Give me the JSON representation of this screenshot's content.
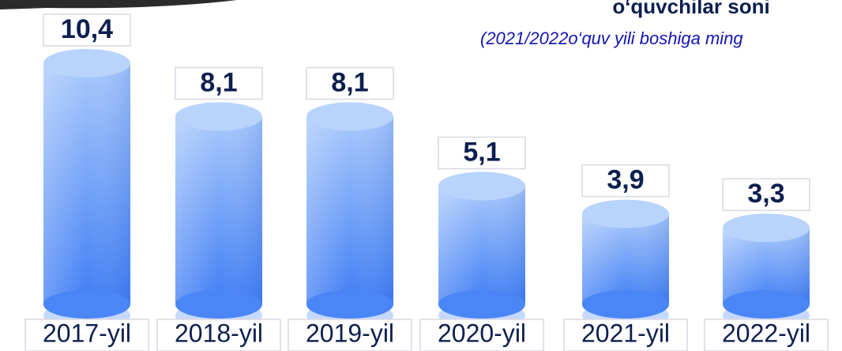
{
  "chart_data": {
    "type": "bar",
    "title": "o‘quvchilar soni",
    "subtitle": "(2021/2022o‘quv yili boshiga ming",
    "categories": [
      "2017-yil",
      "2018-yil",
      "2019-yil",
      "2020-yil",
      "2021-yil",
      "2022-yil"
    ],
    "values": [
      10.4,
      8.1,
      8.1,
      5.1,
      3.9,
      3.3
    ],
    "value_labels": [
      "10,4",
      "8,1",
      "8,1",
      "5,1",
      "3,9",
      "3,3"
    ],
    "color": "#4a86f5"
  }
}
